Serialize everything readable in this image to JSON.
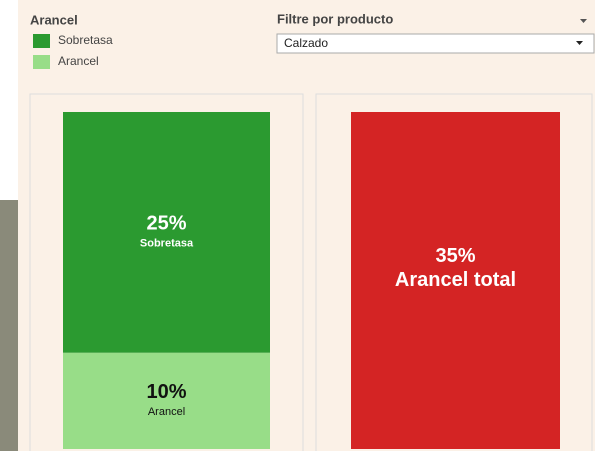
{
  "legend": {
    "title": "Arancel"
  },
  "filter": {
    "label": "Filtre por producto",
    "selected": "Calzado"
  },
  "chart_data": [
    {
      "type": "stacked_bar",
      "series": [
        {
          "name": "Arancel",
          "color": "#98dd88",
          "text_color": "#111111",
          "values": [
            10
          ],
          "value_labels": [
            "10%"
          ]
        },
        {
          "name": "Sobretasa",
          "color": "#2b9a30",
          "text_color": "#ffffff",
          "values": [
            25
          ],
          "value_labels": [
            "25%"
          ]
        }
      ]
    },
    {
      "type": "bar",
      "series": [
        {
          "name": "Arancel total",
          "color": "#d42424",
          "text_color": "#ffffff",
          "values": [
            35
          ],
          "value_labels": [
            "35%"
          ]
        }
      ]
    }
  ]
}
